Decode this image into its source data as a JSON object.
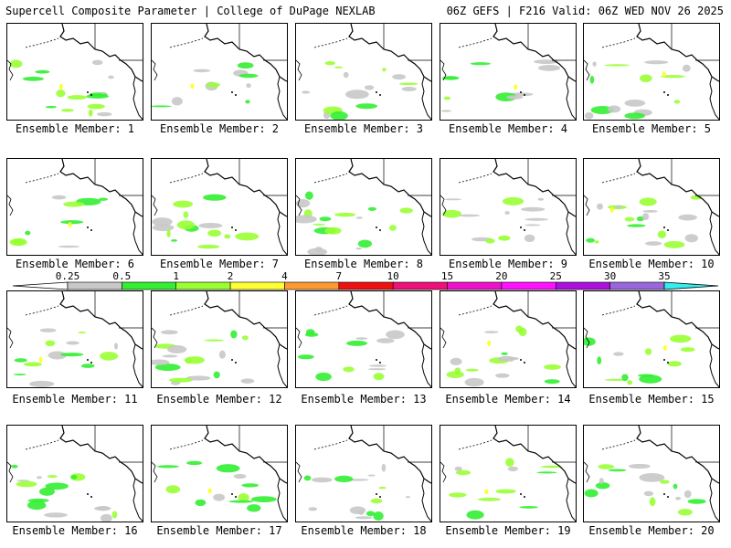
{
  "header": {
    "left_title": "Supercell Composite Parameter | College of DuPage NEXLAB",
    "right_title": "06Z GEFS | F216 Valid: 06Z WED NOV 26 2025"
  },
  "label_prefix": "Ensemble Member: ",
  "members": [
    "1",
    "2",
    "3",
    "4",
    "5",
    "6",
    "7",
    "8",
    "9",
    "10",
    "11",
    "12",
    "13",
    "14",
    "15",
    "16",
    "17",
    "18",
    "19",
    "20"
  ],
  "colorbar": {
    "ticks": [
      "0.25",
      "0.5",
      "1",
      "2",
      "4",
      "7",
      "10",
      "15",
      "20",
      "25",
      "30",
      "35"
    ],
    "colors": [
      "#c8c8c8",
      "#33ee33",
      "#99ff33",
      "#ffff33",
      "#ff9933",
      "#ee1111",
      "#ee1177",
      "#ee11cc",
      "#ff11ff",
      "#aa11dd",
      "#9966dd",
      "#33eeee"
    ]
  }
}
